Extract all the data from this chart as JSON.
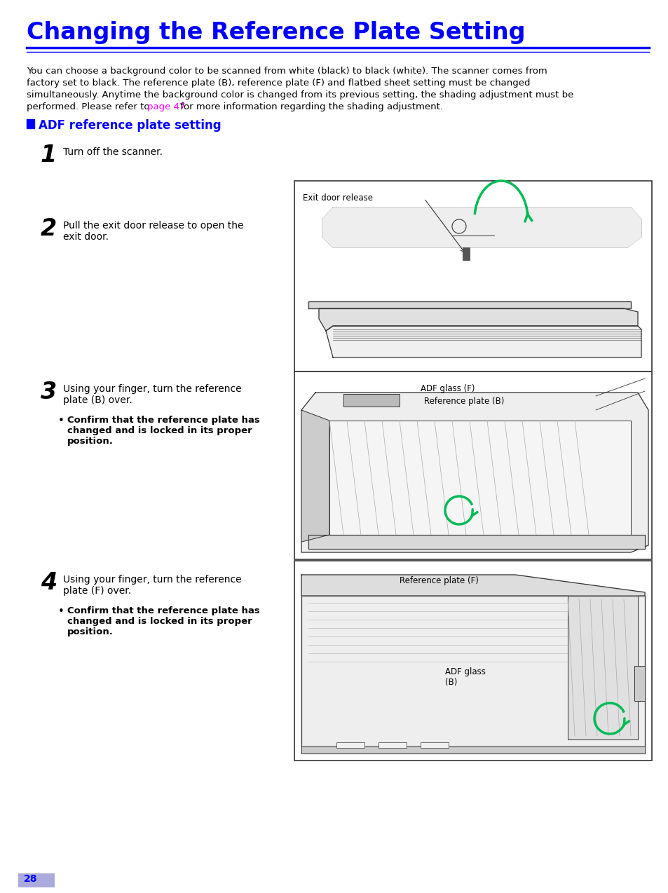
{
  "title": "Changing the Reference Plate Setting",
  "title_color": "#0000FF",
  "line_color_thick": "#0000FF",
  "line_color_thin": "#0000FF",
  "section_color": "#0000FF",
  "page_link_color": "#FF00FF",
  "body_text_line1": "You can choose a background color to be scanned from white (black) to black (white). The scanner comes from",
  "body_text_line2": "factory set to black. The reference plate (B), reference plate (F) and flatbed sheet setting must be changed",
  "body_text_line3": "simultaneously. Anytime the background color is changed from its previous setting, the shading adjustment must be",
  "body_text_line4a": "performed. Please refer to ",
  "body_text_line4b": "page 47",
  "body_text_line4c": " for more information regarding the shading adjustment.",
  "step1_text": "Turn off the scanner.",
  "step2_text": "Pull the exit door release to open the\nexit door.",
  "step3_text": "Using your finger, turn the reference\nplate (B) over.",
  "step3_bullet": "Confirm that the reference plate has\nchanged and is locked in its proper\nposition.",
  "step4_text": "Using your finger, turn the reference\nplate (F) over.",
  "step4_bullet": "Confirm that the reference plate has\nchanged and is locked in its proper\nposition.",
  "img1_label": "Exit door release",
  "img2_label1": "ADF glass (F)",
  "img2_label2": "Reference plate (B)",
  "img3_label1": "Reference plate (F)",
  "img3_label2": "ADF glass",
  "img3_label3": "(B)",
  "page_number": "28",
  "page_bg_color": "#AAAADD",
  "bg_color": "#FFFFFF",
  "text_color": "#000000",
  "green_color": "#00BB55",
  "draw_color": "#333333"
}
